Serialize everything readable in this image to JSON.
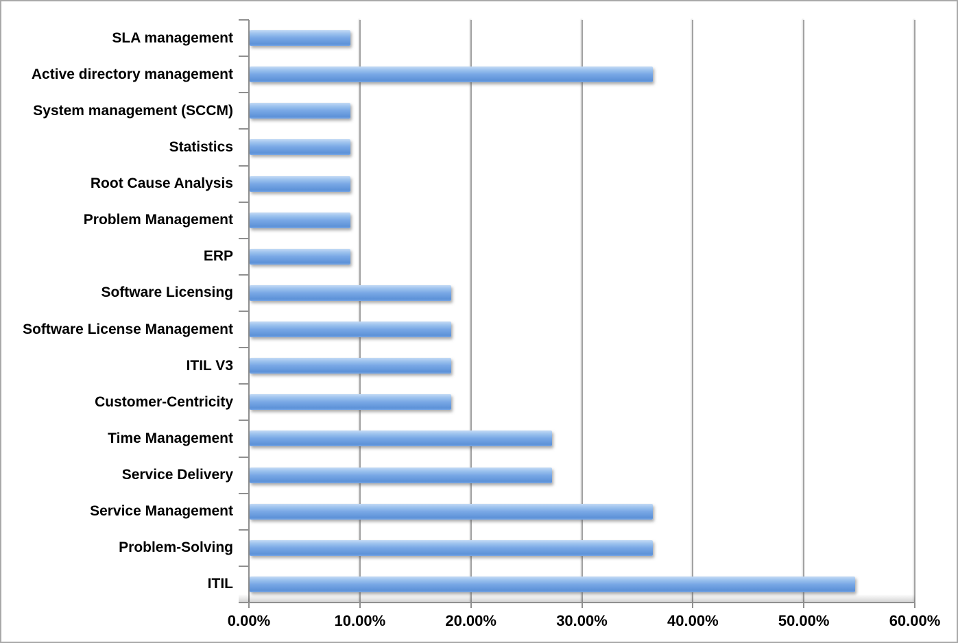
{
  "chart_data": {
    "type": "bar",
    "orientation": "horizontal",
    "title": "",
    "xlabel": "",
    "ylabel": "",
    "categories_order": "top-to-bottom",
    "categories": [
      "SLA management",
      "Active directory management",
      "System management (SCCM)",
      "Statistics",
      "Root Cause Analysis",
      "Problem Management",
      "ERP",
      "Software Licensing",
      "Software License Management",
      "ITIL V3",
      "Customer-Centricity",
      "Time Management",
      "Service Delivery",
      "Service Management",
      "Problem-Solving",
      "ITIL"
    ],
    "values": [
      9.09,
      36.36,
      9.09,
      9.09,
      9.09,
      9.09,
      9.09,
      18.18,
      18.18,
      18.18,
      18.18,
      27.27,
      27.27,
      36.36,
      36.36,
      54.55
    ],
    "value_unit": "%",
    "xlim": [
      0,
      60
    ],
    "x_tick_values": [
      0,
      10,
      20,
      30,
      40,
      50,
      60
    ],
    "x_tick_labels": [
      "0.00%",
      "10.00%",
      "20.00%",
      "30.00%",
      "40.00%",
      "50.00%",
      "60.00%"
    ],
    "grid": "vertical",
    "legend_position": "none",
    "colors": {
      "bar_gradient_top": "#c3daf5",
      "bar_gradient_upper": "#9cc2ee",
      "bar_gradient_mid": "#78a7e5",
      "bar_gradient_bottom": "#5d92d8",
      "gridline": "#a2a2a2",
      "axis_line": "#8f8f8f",
      "tick": "#8f8f8f",
      "text": "#000000",
      "canvas_border": "#a9a9a9",
      "background": "#ffffff"
    }
  }
}
